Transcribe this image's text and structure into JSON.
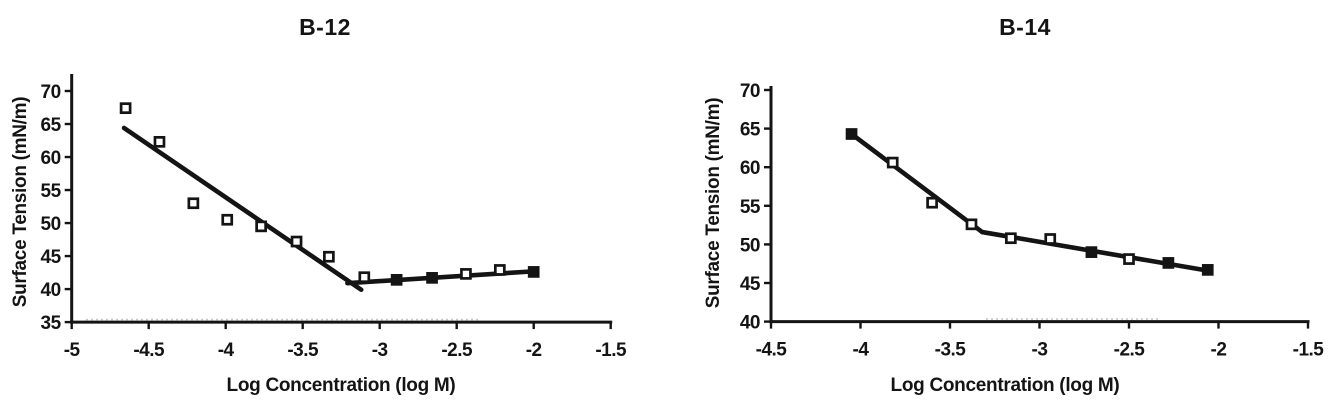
{
  "figure": {
    "background": "#ffffff",
    "ink_color": "#141414"
  },
  "chart_data": [
    {
      "type": "scatter",
      "title": "B-12",
      "xlabel": "Log Concentration (log M)",
      "ylabel": "Surface Tension (mN/m)",
      "xlim": [
        -5,
        -1.5
      ],
      "ylim": [
        35,
        70
      ],
      "xticks": [
        -5,
        -4.5,
        -4,
        -3.5,
        -3,
        -2.5,
        -2,
        -1.5
      ],
      "yticks": [
        35,
        40,
        45,
        50,
        55,
        60,
        65,
        70
      ],
      "grid": false,
      "legend": false,
      "marker": "square",
      "points": [
        {
          "x": -4.65,
          "y": 67.4,
          "filled": false
        },
        {
          "x": -4.43,
          "y": 62.3,
          "filled": false
        },
        {
          "x": -4.21,
          "y": 53.0,
          "filled": false
        },
        {
          "x": -3.99,
          "y": 50.5,
          "filled": false
        },
        {
          "x": -3.77,
          "y": 49.5,
          "filled": false
        },
        {
          "x": -3.54,
          "y": 47.2,
          "filled": false
        },
        {
          "x": -3.33,
          "y": 44.9,
          "filled": false
        },
        {
          "x": -3.1,
          "y": 41.8,
          "filled": false
        },
        {
          "x": -2.89,
          "y": 41.4,
          "filled": true
        },
        {
          "x": -2.66,
          "y": 41.7,
          "filled": true
        },
        {
          "x": -2.44,
          "y": 42.3,
          "filled": false
        },
        {
          "x": -2.22,
          "y": 42.9,
          "filled": false
        },
        {
          "x": -2.0,
          "y": 42.6,
          "filled": true
        }
      ],
      "fit_lines": [
        {
          "name": "descending-fit",
          "x1": -4.66,
          "y1": 64.4,
          "x2": -3.12,
          "y2": 39.9
        },
        {
          "name": "plateau-fit",
          "x1": -3.21,
          "y1": 40.9,
          "x2": -1.99,
          "y2": 42.7
        }
      ]
    },
    {
      "type": "scatter",
      "title": "B-14",
      "xlabel": "Log Concentration (log M)",
      "ylabel": "Surface Tension (mN/m)",
      "xlim": [
        -4.5,
        -1.5
      ],
      "ylim": [
        40,
        70
      ],
      "xticks": [
        -4.5,
        -4,
        -3.5,
        -3,
        -2.5,
        -2,
        -1.5
      ],
      "yticks": [
        40,
        45,
        50,
        55,
        60,
        65,
        70
      ],
      "grid": false,
      "legend": false,
      "marker": "square",
      "points": [
        {
          "x": -4.05,
          "y": 64.3,
          "filled": true
        },
        {
          "x": -3.82,
          "y": 60.6,
          "filled": false
        },
        {
          "x": -3.6,
          "y": 55.4,
          "filled": false
        },
        {
          "x": -3.38,
          "y": 52.6,
          "filled": false
        },
        {
          "x": -3.16,
          "y": 50.8,
          "filled": false
        },
        {
          "x": -2.94,
          "y": 50.7,
          "filled": false
        },
        {
          "x": -2.71,
          "y": 49.0,
          "filled": true
        },
        {
          "x": -2.5,
          "y": 48.1,
          "filled": false
        },
        {
          "x": -2.28,
          "y": 47.6,
          "filled": true
        },
        {
          "x": -2.06,
          "y": 46.7,
          "filled": true
        }
      ],
      "fit_lines": [
        {
          "name": "descending-fit",
          "x1": -4.05,
          "y1": 64.3,
          "x2": -3.32,
          "y2": 51.6
        },
        {
          "name": "plateau-fit",
          "x1": -3.32,
          "y1": 51.6,
          "x2": -2.06,
          "y2": 46.6
        }
      ]
    }
  ]
}
